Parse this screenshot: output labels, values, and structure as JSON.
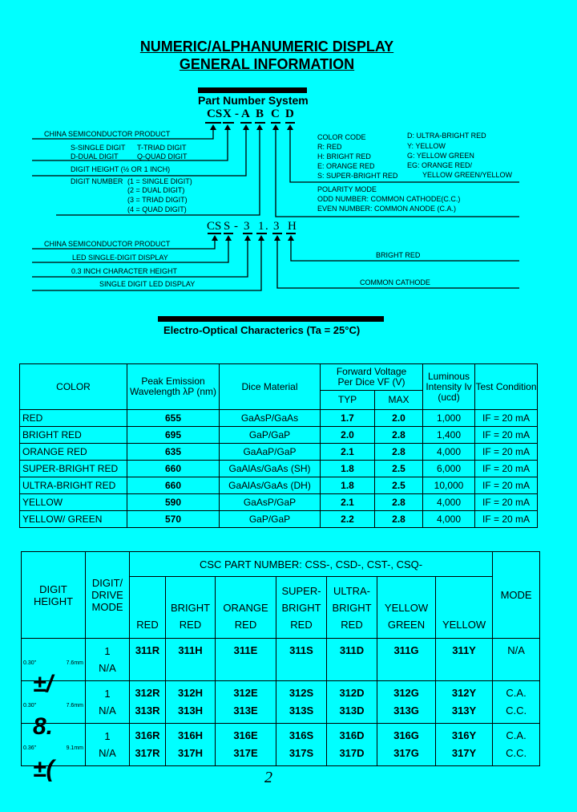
{
  "header": {
    "title_line1": "NUMERIC/ALPHANUMERIC DISPLAY",
    "title_line2": "GENERAL INFORMATION"
  },
  "part_number_system": {
    "heading": "Part Number System",
    "code": [
      "CS",
      "X",
      "-",
      "A",
      "B",
      "C",
      "D"
    ],
    "left_labels": {
      "china": "CHINA SEMICONDUCTOR PRODUCT",
      "single": "S-SINGLE DIGIT",
      "triad": "T-TRIAD DIGIT",
      "dual": "D-DUAL DIGIT",
      "quad": "Q-QUAD DIGIT",
      "height": "DIGIT HEIGHT (½ OR 1 INCH)",
      "number": "DIGIT NUMBER",
      "n1": "(1 = SINGLE DIGIT)",
      "n2": "(2 = DUAL DIGIT)",
      "n3": "(3 = TRIAD DIGIT)",
      "n4": "(4 = QUAD DIGIT)"
    },
    "color_code": {
      "heading": "COLOR CODE",
      "items": [
        "R: RED",
        "H: BRIGHT RED",
        "E: ORANGE RED",
        "S: SUPER-BRIGHT RED",
        "D: ULTRA-BRIGHT RED",
        "Y: YELLOW",
        "G: YELLOW GREEN",
        "EG: ORANGE RED/",
        "YELLOW GREEN/YELLOW"
      ]
    },
    "polarity": {
      "heading": "POLARITY MODE",
      "odd": "ODD NUMBER: COMMON CATHODE(C.C.)",
      "even": "EVEN NUMBER: COMMON  ANODE (C.A.)"
    }
  },
  "example": {
    "code": [
      "CS",
      "S",
      "-",
      "3",
      "1",
      ".",
      "3",
      "H"
    ],
    "labels": {
      "china": "CHINA SEMICONDUCTOR PRODUCT",
      "led": "LED SINGLE-DIGIT DISPLAY",
      "height": "0.3 INCH CHARACTER HEIGHT",
      "single": "SINGLE DIGIT LED DISPLAY",
      "bright": "BRIGHT RED",
      "cathode": "COMMON CATHODE"
    }
  },
  "electro_optical": {
    "heading": "Electro-Optical Characterics (Ta = 25°C)",
    "headers": {
      "color": "COLOR",
      "peak": "Peak Emission Wavelength λP (nm)",
      "dice": "Dice Material",
      "fv": "Forward Voltage",
      "fv2": "Per Dice    VF (V)",
      "typ": "TYP",
      "max": "MAX",
      "lum": "Luminous Intensity Iv (ucd)",
      "test": "Test Condition"
    },
    "rows": [
      [
        "RED",
        "655",
        "GaAsP/GaAs",
        "1.7",
        "2.0",
        "1,000",
        "IF = 20 mA"
      ],
      [
        "BRIGHT RED",
        "695",
        "GaP/GaP",
        "2.0",
        "2.8",
        "1,400",
        "IF = 20 mA"
      ],
      [
        "ORANGE RED",
        "635",
        "GaAaP/GaP",
        "2.1",
        "2.8",
        "4,000",
        "IF = 20 mA"
      ],
      [
        "SUPER-BRIGHT RED",
        "660",
        "GaAlAs/GaAs (SH)",
        "1.8",
        "2.5",
        "6,000",
        "IF = 20 mA"
      ],
      [
        "ULTRA-BRIGHT RED",
        "660",
        "GaAlAs/GaAs (DH)",
        "1.8",
        "2.5",
        "10,000",
        "IF = 20 mA"
      ],
      [
        "YELLOW",
        "590",
        "GaAsP/GaP",
        "2.1",
        "2.8",
        "4,000",
        "IF = 20 mA"
      ],
      [
        "YELLOW/ GREEN",
        "570",
        "GaP/GaP",
        "2.2",
        "2.8",
        "4,000",
        "IF = 20 mA"
      ]
    ]
  },
  "part_table": {
    "headers": {
      "digit_height": "DIGIT HEIGHT",
      "drive": "DIGIT/ DRIVE MODE",
      "csc": "CSC PART NUMBER: CSS-, CSD-, CST-, CSQ-",
      "mode": "MODE",
      "colors": [
        "RED",
        "BRIGHT RED",
        "ORANGE RED",
        "SUPER- BRIGHT RED",
        "ULTRA- BRIGHT RED",
        "YELLOW GREEN",
        "YELLOW"
      ]
    },
    "rows": [
      {
        "inch": "0.30\"",
        "mm": "7.6mm",
        "glyph": "±/",
        "drive": [
          "1",
          "N/A"
        ],
        "parts": [
          [
            "311R"
          ],
          [
            "311H"
          ],
          [
            "311E"
          ],
          [
            "311S"
          ],
          [
            "311D"
          ],
          [
            "311G"
          ],
          [
            "311Y"
          ]
        ],
        "mode": [
          "N/A"
        ]
      },
      {
        "inch": "0.30\"",
        "mm": "7.6mm",
        "glyph": "8.",
        "drive": [
          "1",
          "N/A"
        ],
        "parts": [
          [
            "312R",
            "313R"
          ],
          [
            "312H",
            "313H"
          ],
          [
            "312E",
            "313E"
          ],
          [
            "312S",
            "313S"
          ],
          [
            "312D",
            "313D"
          ],
          [
            "312G",
            "313G"
          ],
          [
            "312Y",
            "313Y"
          ]
        ],
        "mode": [
          "C.A.",
          "C.C."
        ]
      },
      {
        "inch": "0.36\"",
        "mm": "9.1mm",
        "glyph": "±(",
        "drive": [
          "1",
          "N/A"
        ],
        "parts": [
          [
            "316R",
            "317R"
          ],
          [
            "316H",
            "317H"
          ],
          [
            "316E",
            "317E"
          ],
          [
            "316S",
            "317S"
          ],
          [
            "316D",
            "317D"
          ],
          [
            "316G",
            "317G"
          ],
          [
            "316Y",
            "317Y"
          ]
        ],
        "mode": [
          "C.A.",
          "C.C."
        ]
      }
    ]
  },
  "footer": {
    "page": "2"
  },
  "colors": {
    "background": "#00ffff",
    "ink": "#000000"
  }
}
